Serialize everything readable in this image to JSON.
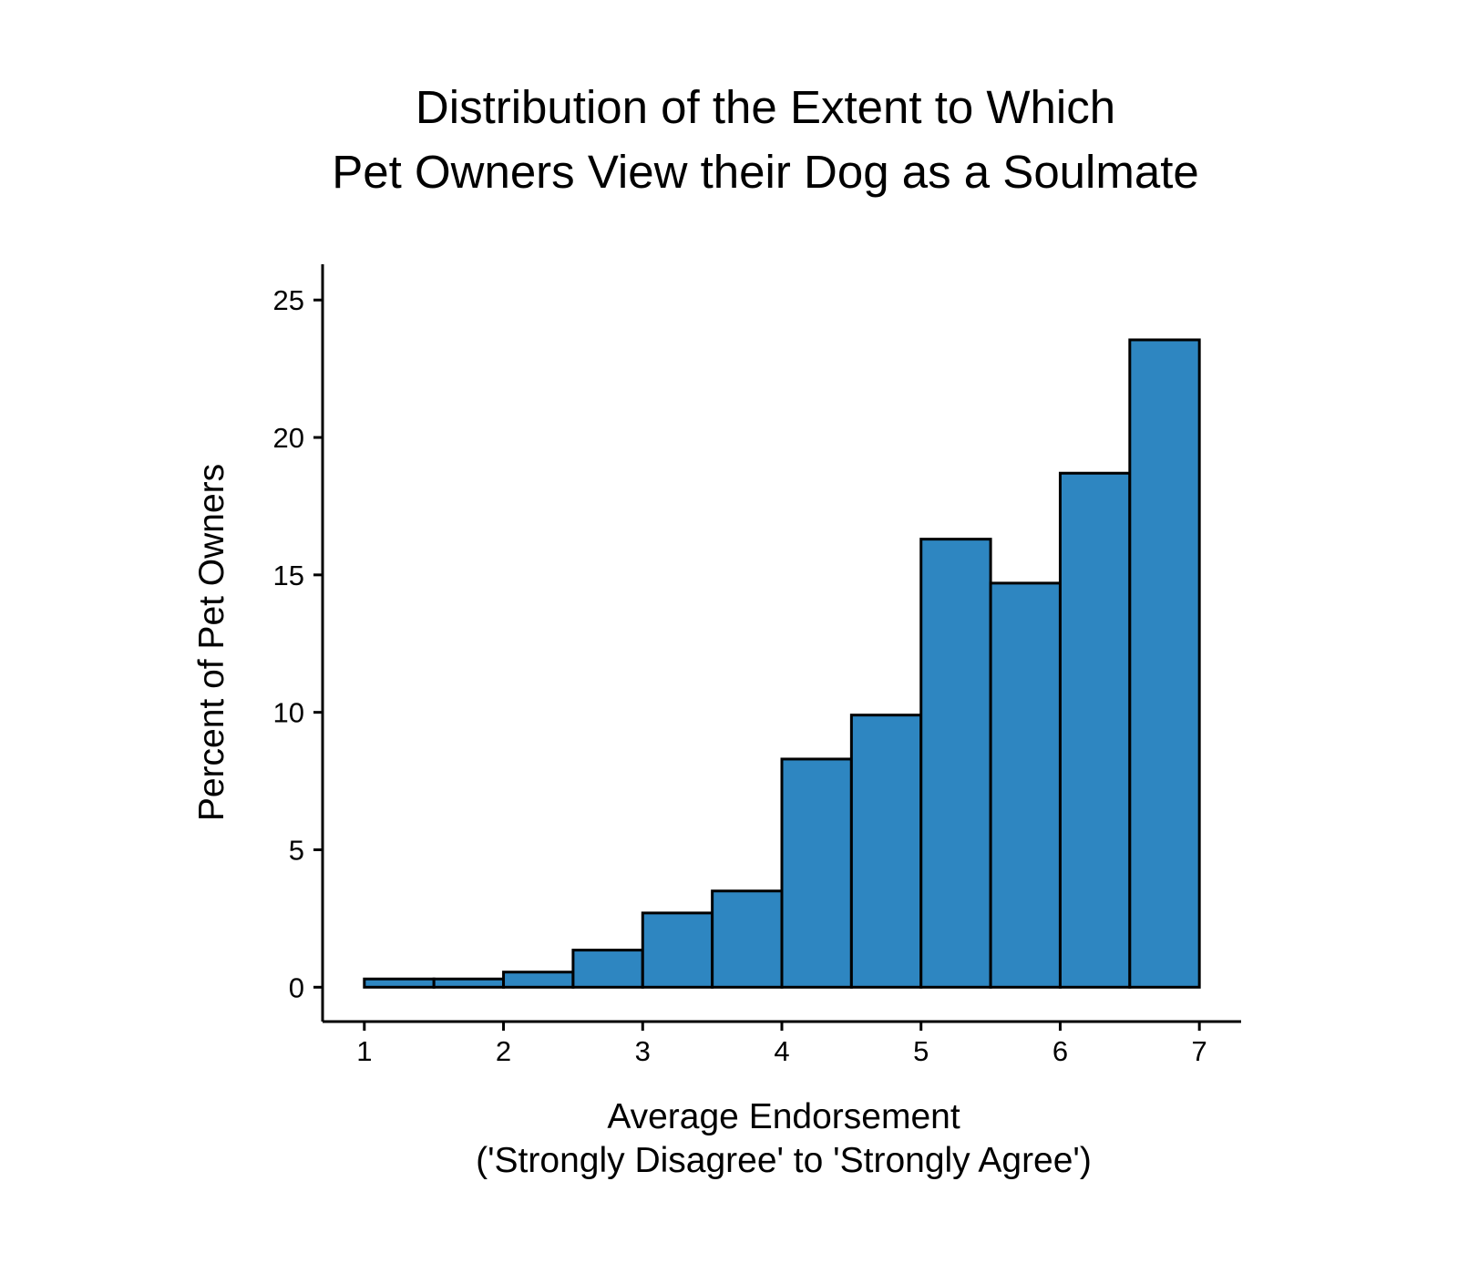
{
  "chart_data": {
    "type": "bar",
    "title_lines": [
      "Distribution of the Extent to Which",
      "Pet Owners View their Dog as a Soulmate"
    ],
    "xlabel_lines": [
      "Average Endorsement",
      "('Strongly Disagree' to 'Strongly Agree')"
    ],
    "ylabel": "Percent of Pet Owners",
    "xlim": [
      0.7,
      7.3
    ],
    "ylim": [
      -1.25,
      26.3
    ],
    "x_ticks": [
      1,
      2,
      3,
      4,
      5,
      6,
      7
    ],
    "y_ticks": [
      0,
      5,
      10,
      15,
      20,
      25
    ],
    "bins": [
      {
        "start": 1.0,
        "end": 1.5,
        "value": 0.3
      },
      {
        "start": 1.5,
        "end": 2.0,
        "value": 0.3
      },
      {
        "start": 2.0,
        "end": 2.5,
        "value": 0.55
      },
      {
        "start": 2.5,
        "end": 3.0,
        "value": 1.35
      },
      {
        "start": 3.0,
        "end": 3.5,
        "value": 2.7
      },
      {
        "start": 3.5,
        "end": 4.0,
        "value": 3.5
      },
      {
        "start": 4.0,
        "end": 4.5,
        "value": 8.3
      },
      {
        "start": 4.5,
        "end": 5.0,
        "value": 9.9
      },
      {
        "start": 5.0,
        "end": 5.5,
        "value": 16.3
      },
      {
        "start": 5.5,
        "end": 6.0,
        "value": 14.7
      },
      {
        "start": 6.0,
        "end": 6.5,
        "value": 18.7
      },
      {
        "start": 6.5,
        "end": 7.0,
        "value": 23.55
      }
    ],
    "bar_color": "#2E86C1",
    "grid": false,
    "legend": "none"
  }
}
